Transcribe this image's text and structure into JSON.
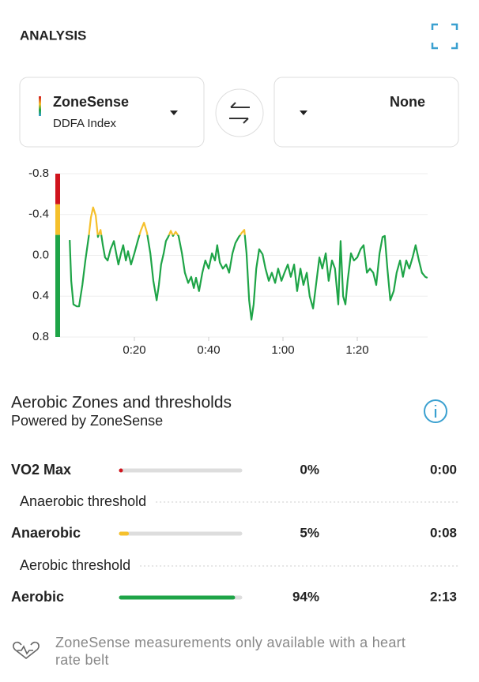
{
  "header": {
    "title": "ANALYSIS"
  },
  "selectors": {
    "primary": {
      "title": "ZoneSense",
      "subtitle": "DDFA Index"
    },
    "secondary": {
      "title": "None"
    }
  },
  "chart_data": {
    "type": "line",
    "x": [
      2.6,
      3.0,
      3.6,
      4.5,
      5.1,
      6.0,
      6.8,
      7.7,
      8.3,
      8.9,
      9.6,
      10.2,
      10.9,
      11.5,
      12.1,
      12.8,
      13.6,
      14.5,
      15.1,
      15.7,
      16.4,
      17.0,
      17.7,
      18.3,
      19.1,
      20.0,
      20.9,
      21.7,
      22.6,
      23.4,
      24.3,
      25.1,
      26.0,
      26.6,
      27.2,
      27.9,
      28.5,
      29.1,
      29.8,
      30.4,
      31.1,
      31.9,
      32.8,
      33.6,
      34.5,
      35.3,
      36.0,
      36.6,
      37.4,
      38.3,
      39.1,
      40.0,
      40.9,
      41.7,
      42.3,
      43.0,
      43.8,
      44.7,
      45.5,
      46.4,
      47.2,
      48.1,
      48.9,
      49.6,
      50.2,
      50.9,
      51.5,
      52.1,
      52.8,
      53.6,
      54.5,
      55.3,
      56.2,
      57.0,
      57.9,
      58.7,
      59.6,
      60.4,
      61.3,
      62.1,
      63.0,
      63.8,
      64.7,
      65.5,
      66.4,
      67.2,
      68.1,
      68.9,
      69.8,
      70.6,
      71.5,
      72.3,
      73.2,
      74.0,
      74.9,
      75.5,
      76.2,
      76.8,
      77.4,
      78.3,
      79.1,
      80.0,
      80.9,
      81.7,
      82.6,
      83.4,
      84.3,
      85.1,
      86.0,
      86.8,
      87.4,
      88.1,
      88.9,
      89.8,
      90.6,
      91.5,
      92.3,
      93.2,
      94.0,
      94.9,
      95.7,
      96.6,
      97.4,
      98.3,
      98.9
    ],
    "series": [
      {
        "values": [
          -0.15,
          0.25,
          0.48,
          0.5,
          0.5,
          0.29,
          0.05,
          -0.18,
          -0.37,
          -0.47,
          -0.39,
          -0.18,
          -0.25,
          -0.1,
          0.02,
          0.05,
          -0.06,
          -0.14,
          -0.02,
          0.09,
          -0.02,
          -0.1,
          0.05,
          -0.04,
          0.09,
          -0.02,
          -0.14,
          -0.24,
          -0.32,
          -0.22,
          -0.02,
          0.25,
          0.44,
          0.29,
          0.09,
          -0.02,
          -0.14,
          -0.18,
          -0.24,
          -0.19,
          -0.23,
          -0.19,
          -0.02,
          0.17,
          0.27,
          0.21,
          0.32,
          0.22,
          0.35,
          0.17,
          0.05,
          0.13,
          -0.02,
          0.05,
          -0.1,
          0.07,
          0.13,
          0.09,
          0.17,
          -0.02,
          -0.12,
          -0.18,
          -0.22,
          -0.25,
          -0.02,
          0.44,
          0.63,
          0.48,
          0.13,
          -0.06,
          -0.01,
          0.13,
          0.25,
          0.17,
          0.27,
          0.13,
          0.25,
          0.17,
          0.09,
          0.21,
          0.09,
          0.35,
          0.13,
          0.29,
          0.17,
          0.4,
          0.52,
          0.29,
          0.02,
          0.13,
          -0.02,
          0.25,
          0.05,
          0.13,
          0.48,
          -0.14,
          0.4,
          0.48,
          0.25,
          -0.02,
          0.05,
          0.02,
          -0.06,
          -0.1,
          0.17,
          0.13,
          0.17,
          0.29,
          -0.02,
          -0.18,
          -0.19,
          0.13,
          0.44,
          0.35,
          0.17,
          0.05,
          0.21,
          0.05,
          0.13,
          0.02,
          -0.1,
          0.05,
          0.17,
          0.21,
          0.22
        ]
      }
    ],
    "zones": [
      {
        "from": -0.8,
        "to": -0.5,
        "color": "#d0141d"
      },
      {
        "from": -0.5,
        "to": -0.2,
        "color": "#f5c02c"
      },
      {
        "from": -0.2,
        "to": 0.8,
        "color": "#1ea447"
      }
    ],
    "xlim": [
      0,
      100
    ],
    "xticks": [
      {
        "value": 20,
        "label": "0:20"
      },
      {
        "value": 40,
        "label": "0:40"
      },
      {
        "value": 60,
        "label": "1:00"
      },
      {
        "value": 80,
        "label": "1:20"
      }
    ],
    "ylim": [
      -0.8,
      0.8
    ],
    "y_inverted": true,
    "yticks": [
      -0.8,
      -0.4,
      {
        "value": 0,
        "label": "0.0"
      },
      0.4,
      0.8
    ],
    "grid": true
  },
  "zones_section": {
    "title": "Aerobic Zones and thresholds",
    "subtitle": "Powered by ZoneSense",
    "zones": [
      {
        "name": "VO2 Max",
        "color": "#d0141d",
        "percent": 0,
        "percent_label": "0%",
        "time": "0:00"
      },
      {
        "name": "Anaerobic",
        "color": "#f5c02c",
        "percent": 5,
        "percent_label": "5%",
        "time": "0:08"
      },
      {
        "name": "Aerobic",
        "color": "#1ea447",
        "percent": 94,
        "percent_label": "94%",
        "time": "2:13"
      }
    ],
    "thresholds": [
      "Anaerobic threshold",
      "Aerobic threshold"
    ]
  },
  "footer": {
    "note": "ZoneSense measurements only available with a heart rate belt"
  }
}
